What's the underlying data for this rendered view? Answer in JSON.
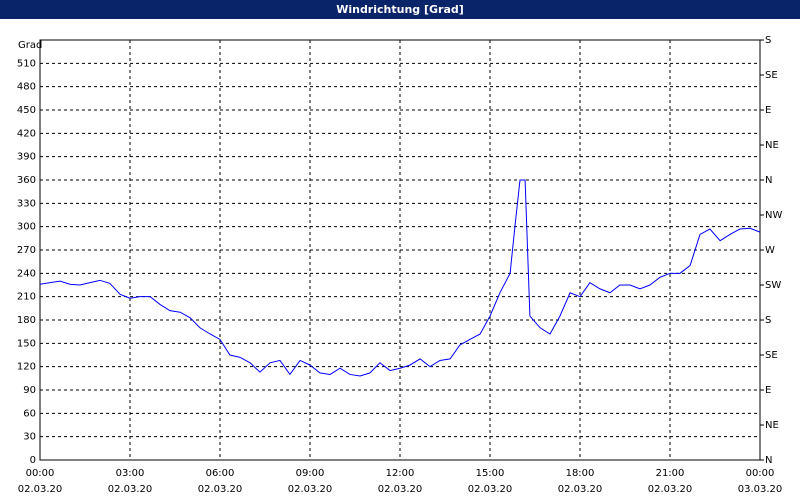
{
  "chart_data": {
    "type": "line",
    "title": "Windrichtung [Grad]",
    "y_label": "Grad",
    "x": [
      0,
      0.33,
      0.67,
      1,
      1.33,
      1.67,
      2,
      2.33,
      2.67,
      3,
      3.33,
      3.67,
      4,
      4.33,
      4.67,
      5,
      5.33,
      5.67,
      6,
      6.33,
      6.67,
      7,
      7.33,
      7.67,
      8,
      8.33,
      8.67,
      9,
      9.33,
      9.67,
      10,
      10.33,
      10.67,
      11,
      11.33,
      11.67,
      12,
      12.33,
      12.67,
      13,
      13.33,
      13.67,
      14,
      14.33,
      14.67,
      15,
      15.33,
      15.67,
      15.83,
      16,
      16.17,
      16.33,
      16.67,
      17,
      17.33,
      17.67,
      18,
      18.33,
      18.67,
      19,
      19.33,
      19.67,
      20,
      20.33,
      20.67,
      21,
      21.33,
      21.67,
      22,
      22.33,
      22.67,
      23,
      23.33,
      23.67,
      24
    ],
    "series": [
      {
        "name": "Windrichtung",
        "color": "#0000ff",
        "values": [
          226,
          228,
          230,
          226,
          225,
          228,
          231,
          227,
          213,
          208,
          210,
          210,
          200,
          192,
          190,
          183,
          170,
          162,
          155,
          135,
          132,
          125,
          113,
          125,
          128,
          110,
          128,
          122,
          112,
          110,
          118,
          110,
          108,
          112,
          125,
          115,
          118,
          122,
          130,
          120,
          128,
          130,
          148,
          155,
          162,
          185,
          215,
          240,
          300,
          360,
          360,
          185,
          170,
          162,
          185,
          215,
          210,
          228,
          220,
          215,
          225,
          225,
          220,
          225,
          235,
          240,
          240,
          250,
          290,
          297,
          282,
          290,
          297,
          298,
          293
        ]
      }
    ],
    "xlim": [
      0,
      24
    ],
    "xticks": [
      {
        "value": 0,
        "label": "00:00"
      },
      {
        "value": 3,
        "label": "03:00"
      },
      {
        "value": 6,
        "label": "06:00"
      },
      {
        "value": 9,
        "label": "09:00"
      },
      {
        "value": 12,
        "label": "12:00"
      },
      {
        "value": 15,
        "label": "15:00"
      },
      {
        "value": 18,
        "label": "18:00"
      },
      {
        "value": 21,
        "label": "21:00"
      },
      {
        "value": 24,
        "label": "00:00"
      }
    ],
    "xtick_dates": [
      "02.03.20",
      "02.03.20",
      "02.03.20",
      "02.03.20",
      "02.03.20",
      "02.03.20",
      "02.03.20",
      "02.03.20",
      "03.03.20"
    ],
    "ylim": [
      0,
      540
    ],
    "yticks": [
      0,
      30,
      60,
      90,
      120,
      150,
      180,
      210,
      240,
      270,
      300,
      330,
      360,
      390,
      420,
      450,
      480,
      510
    ],
    "y2lim": [
      0,
      540
    ],
    "y2ticks": [
      {
        "value": 0,
        "label": "N"
      },
      {
        "value": 45,
        "label": "NE"
      },
      {
        "value": 90,
        "label": "E"
      },
      {
        "value": 135,
        "label": "SE"
      },
      {
        "value": 180,
        "label": "S"
      },
      {
        "value": 225,
        "label": "SW"
      },
      {
        "value": 270,
        "label": "W"
      },
      {
        "value": 315,
        "label": "NW"
      },
      {
        "value": 360,
        "label": "N"
      },
      {
        "value": 405,
        "label": "NE"
      },
      {
        "value": 450,
        "label": "E"
      },
      {
        "value": 495,
        "label": "SE"
      },
      {
        "value": 540,
        "label": "S"
      }
    ],
    "grid": true
  }
}
